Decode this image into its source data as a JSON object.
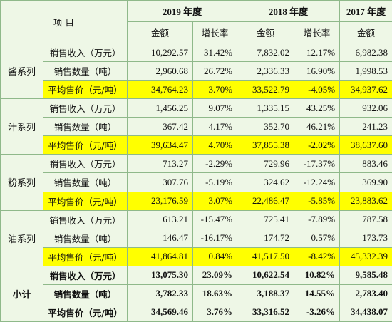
{
  "header": {
    "item": "项 目",
    "years": [
      "2019 年度",
      "2018 年度",
      "2017 年度"
    ],
    "subheaders": [
      "金额",
      "增长率",
      "金额",
      "增长率",
      "金额"
    ]
  },
  "groups": [
    {
      "name": "酱系列",
      "rows": [
        [
          "销售收入（万元）",
          "10,292.57",
          "31.42%",
          "7,832.02",
          "12.17%",
          "6,982.38"
        ],
        [
          "销售数量（吨）",
          "2,960.68",
          "26.72%",
          "2,336.33",
          "16.90%",
          "1,998.53"
        ],
        [
          "平均售价（元/吨）",
          "34,764.23",
          "3.70%",
          "33,522.79",
          "-4.05%",
          "34,937.62"
        ]
      ]
    },
    {
      "name": "汁系列",
      "rows": [
        [
          "销售收入（万元）",
          "1,456.25",
          "9.07%",
          "1,335.15",
          "43.25%",
          "932.06"
        ],
        [
          "销售数量（吨）",
          "367.42",
          "4.17%",
          "352.70",
          "46.21%",
          "241.23"
        ],
        [
          "平均售价（元/吨）",
          "39,634.47",
          "4.70%",
          "37,855.38",
          "-2.02%",
          "38,637.60"
        ]
      ]
    },
    {
      "name": "粉系列",
      "rows": [
        [
          "销售收入（万元）",
          "713.27",
          "-2.29%",
          "729.96",
          "-17.37%",
          "883.46"
        ],
        [
          "销售数量（吨）",
          "307.76",
          "-5.19%",
          "324.62",
          "-12.24%",
          "369.90"
        ],
        [
          "平均售价（元/吨）",
          "23,176.59",
          "3.07%",
          "22,486.47",
          "-5.85%",
          "23,883.62"
        ]
      ]
    },
    {
      "name": "油系列",
      "rows": [
        [
          "销售收入（万元）",
          "613.21",
          "-15.47%",
          "725.41",
          "-7.89%",
          "787.58"
        ],
        [
          "销售数量（吨）",
          "146.47",
          "-16.17%",
          "174.72",
          "0.57%",
          "173.73"
        ],
        [
          "平均售价（元/吨）",
          "41,864.81",
          "0.84%",
          "41,517.50",
          "-8.42%",
          "45,332.39"
        ]
      ]
    },
    {
      "name": "小计",
      "rows": [
        [
          "销售收入（万元）",
          "13,075.30",
          "23.09%",
          "10,622.54",
          "10.82%",
          "9,585.48"
        ],
        [
          "销售数量（吨）",
          "3,782.33",
          "18.63%",
          "3,188.37",
          "14.55%",
          "2,783.40"
        ],
        [
          "平均售价（元/吨）",
          "34,569.46",
          "3.76%",
          "33,316.52",
          "-3.26%",
          "34,438.07"
        ]
      ]
    }
  ]
}
